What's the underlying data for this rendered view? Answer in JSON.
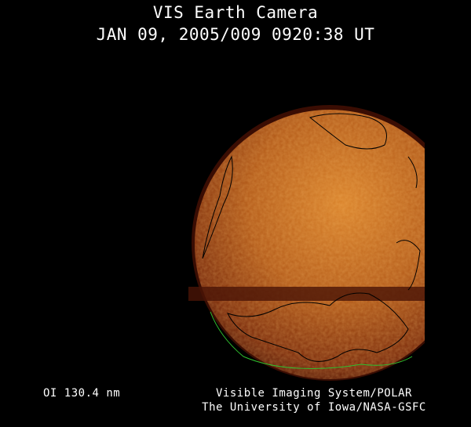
{
  "header": {
    "title": "VIS Earth Camera",
    "timestamp": "JAN 09, 2005/009 0920:38 UT"
  },
  "footer": {
    "wavelength": "OI  130.4 nm",
    "credit_line1": "Visible Imaging System/POLAR",
    "credit_line2": "The University of Iowa/NASA-GSFC"
  },
  "colors": {
    "background": "#000000",
    "disk_bright": "#d9822a",
    "disk_dark": "#5a1a06",
    "coastline": "#000000",
    "southern_coastline": "#2fbf2f"
  }
}
